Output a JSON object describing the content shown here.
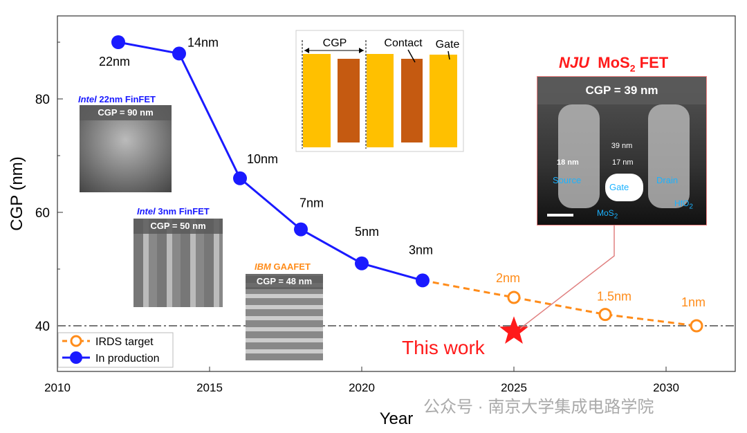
{
  "chart_data": {
    "type": "line",
    "xlabel": "Year",
    "ylabel": "CGP (nm)",
    "xlim": [
      2010,
      2032.2
    ],
    "ylim": [
      32,
      94.6
    ],
    "xticks": [
      2010,
      2015,
      2020,
      2025,
      2030
    ],
    "yticks": [
      40,
      60,
      80
    ],
    "reference_line": {
      "y": 40,
      "style": "dash-dot",
      "color": "#777777"
    },
    "series": [
      {
        "name": "In production",
        "color": "#1a1aff",
        "style": "solid",
        "marker": "filled-circle",
        "x": [
          2012,
          2014,
          2016,
          2018,
          2020,
          2022
        ],
        "y": [
          90,
          88,
          66,
          57,
          51,
          48
        ],
        "labels": [
          "22nm",
          "14nm",
          "10nm",
          "7nm",
          "5nm",
          "3nm"
        ]
      },
      {
        "name": "IRDS target",
        "color": "#ff8c1a",
        "style": "dashed",
        "marker": "open-circle",
        "x": [
          2022,
          2025,
          2028,
          2031
        ],
        "y": [
          48,
          45,
          42,
          40
        ],
        "labels": [
          "",
          "2nm",
          "1.5nm",
          "1nm"
        ]
      }
    ],
    "this_work": {
      "label": "This work",
      "x": 2025,
      "y": 39,
      "color": "#ff1a1a",
      "marker": "star"
    },
    "legend": {
      "placement": "bottom-left",
      "entries": [
        "IRDS target",
        "In production"
      ]
    }
  },
  "insets": {
    "intel22": {
      "brand": "Intel",
      "title": "22nm FinFET",
      "cgp": "CGP = 90 nm"
    },
    "intel3": {
      "brand": "Intel",
      "title": "3nm FinFET",
      "cgp": "CGP = 50 nm"
    },
    "ibm": {
      "brand": "IBM",
      "title": "GAAFET",
      "cgp": "CGP = 48 nm"
    },
    "schematic": {
      "cgp": "CGP",
      "contact": "Contact",
      "gate": "Gate"
    },
    "nju": {
      "brand": "NJU",
      "title_main": "MoS",
      "title_sub": "2",
      "title_end": "FET",
      "cgp": "CGP = 39 nm",
      "dim_total": "39 nm",
      "dim_source": "18 nm",
      "dim_gate": "17 nm",
      "source": "Source",
      "gate": "Gate",
      "drain": "Drain",
      "mos2": "MoS",
      "mos2_sub": "2",
      "hfo2": "HfO",
      "hfo2_sub": "2"
    }
  },
  "watermark": "公众号 · 南京大学集成电路学院"
}
